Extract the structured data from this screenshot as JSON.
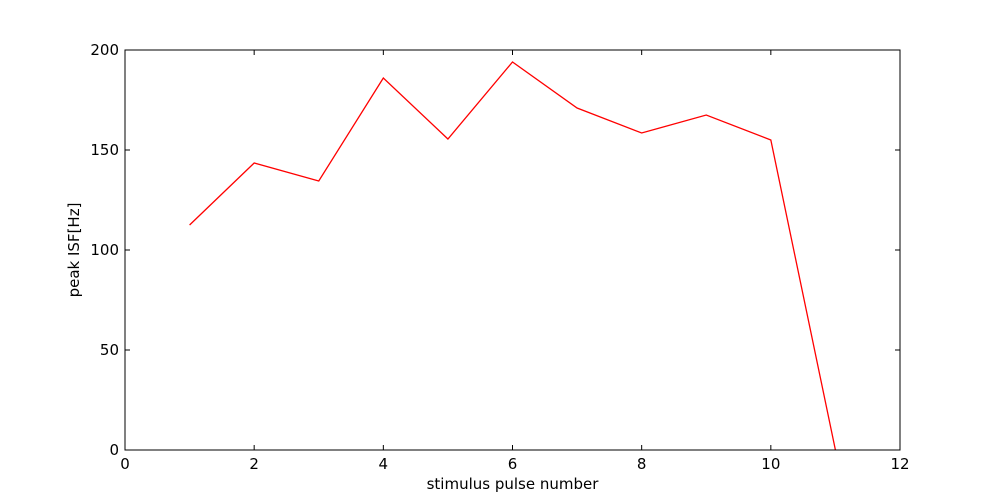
{
  "chart_data": {
    "type": "line",
    "title": "",
    "xlabel": "stimulus pulse number",
    "ylabel": "peak ISF[Hz]",
    "xlim": [
      0,
      12
    ],
    "ylim": [
      0,
      200
    ],
    "xticks": [
      0,
      2,
      4,
      6,
      8,
      10,
      12
    ],
    "yticks": [
      0,
      50,
      100,
      150,
      200
    ],
    "grid": false,
    "series": [
      {
        "color": "#ff0000",
        "x": [
          1,
          2,
          3,
          4,
          5,
          6,
          7,
          8,
          9,
          10,
          11
        ],
        "y": [
          112.5,
          143.5,
          134.5,
          186,
          155.5,
          194,
          171,
          158.5,
          167.5,
          155,
          0
        ]
      }
    ]
  }
}
